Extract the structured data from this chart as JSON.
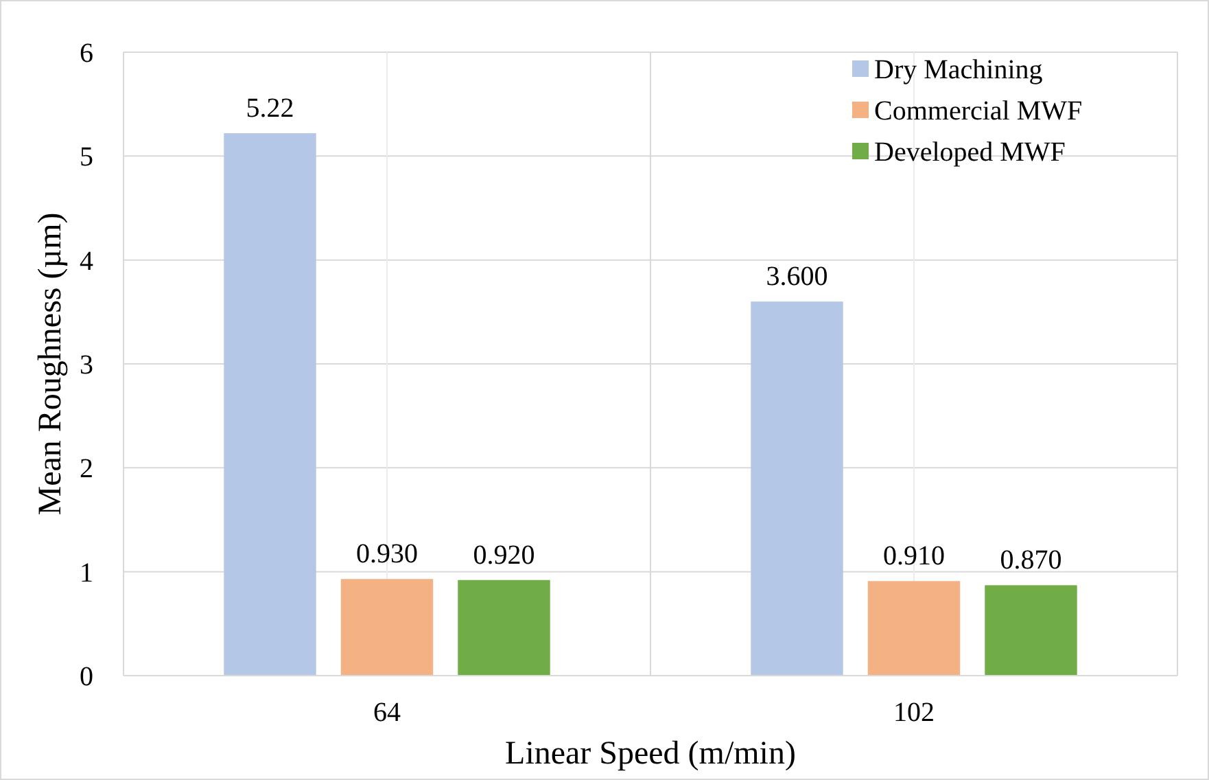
{
  "chart_data": {
    "type": "bar",
    "xlabel": "Linear Speed (m/min)",
    "ylabel": "Mean Roughness (µm)",
    "categories": [
      "64",
      "102"
    ],
    "series": [
      {
        "name": "Dry Machining",
        "color": "#b4c7e7",
        "values": [
          5.22,
          3.6
        ],
        "value_labels": [
          "5.22",
          "3.600"
        ]
      },
      {
        "name": "Commercial MWF",
        "color": "#f4b183",
        "values": [
          0.93,
          0.91
        ],
        "value_labels": [
          "0.930",
          "0.910"
        ]
      },
      {
        "name": "Developed MWF",
        "color": "#70ad47",
        "values": [
          0.92,
          0.87
        ],
        "value_labels": [
          "0.920",
          "0.870"
        ]
      }
    ],
    "ylim": [
      0,
      6
    ],
    "yticks": [
      0,
      1,
      2,
      3,
      4,
      5,
      6
    ],
    "grid": true,
    "legend": "top right"
  }
}
